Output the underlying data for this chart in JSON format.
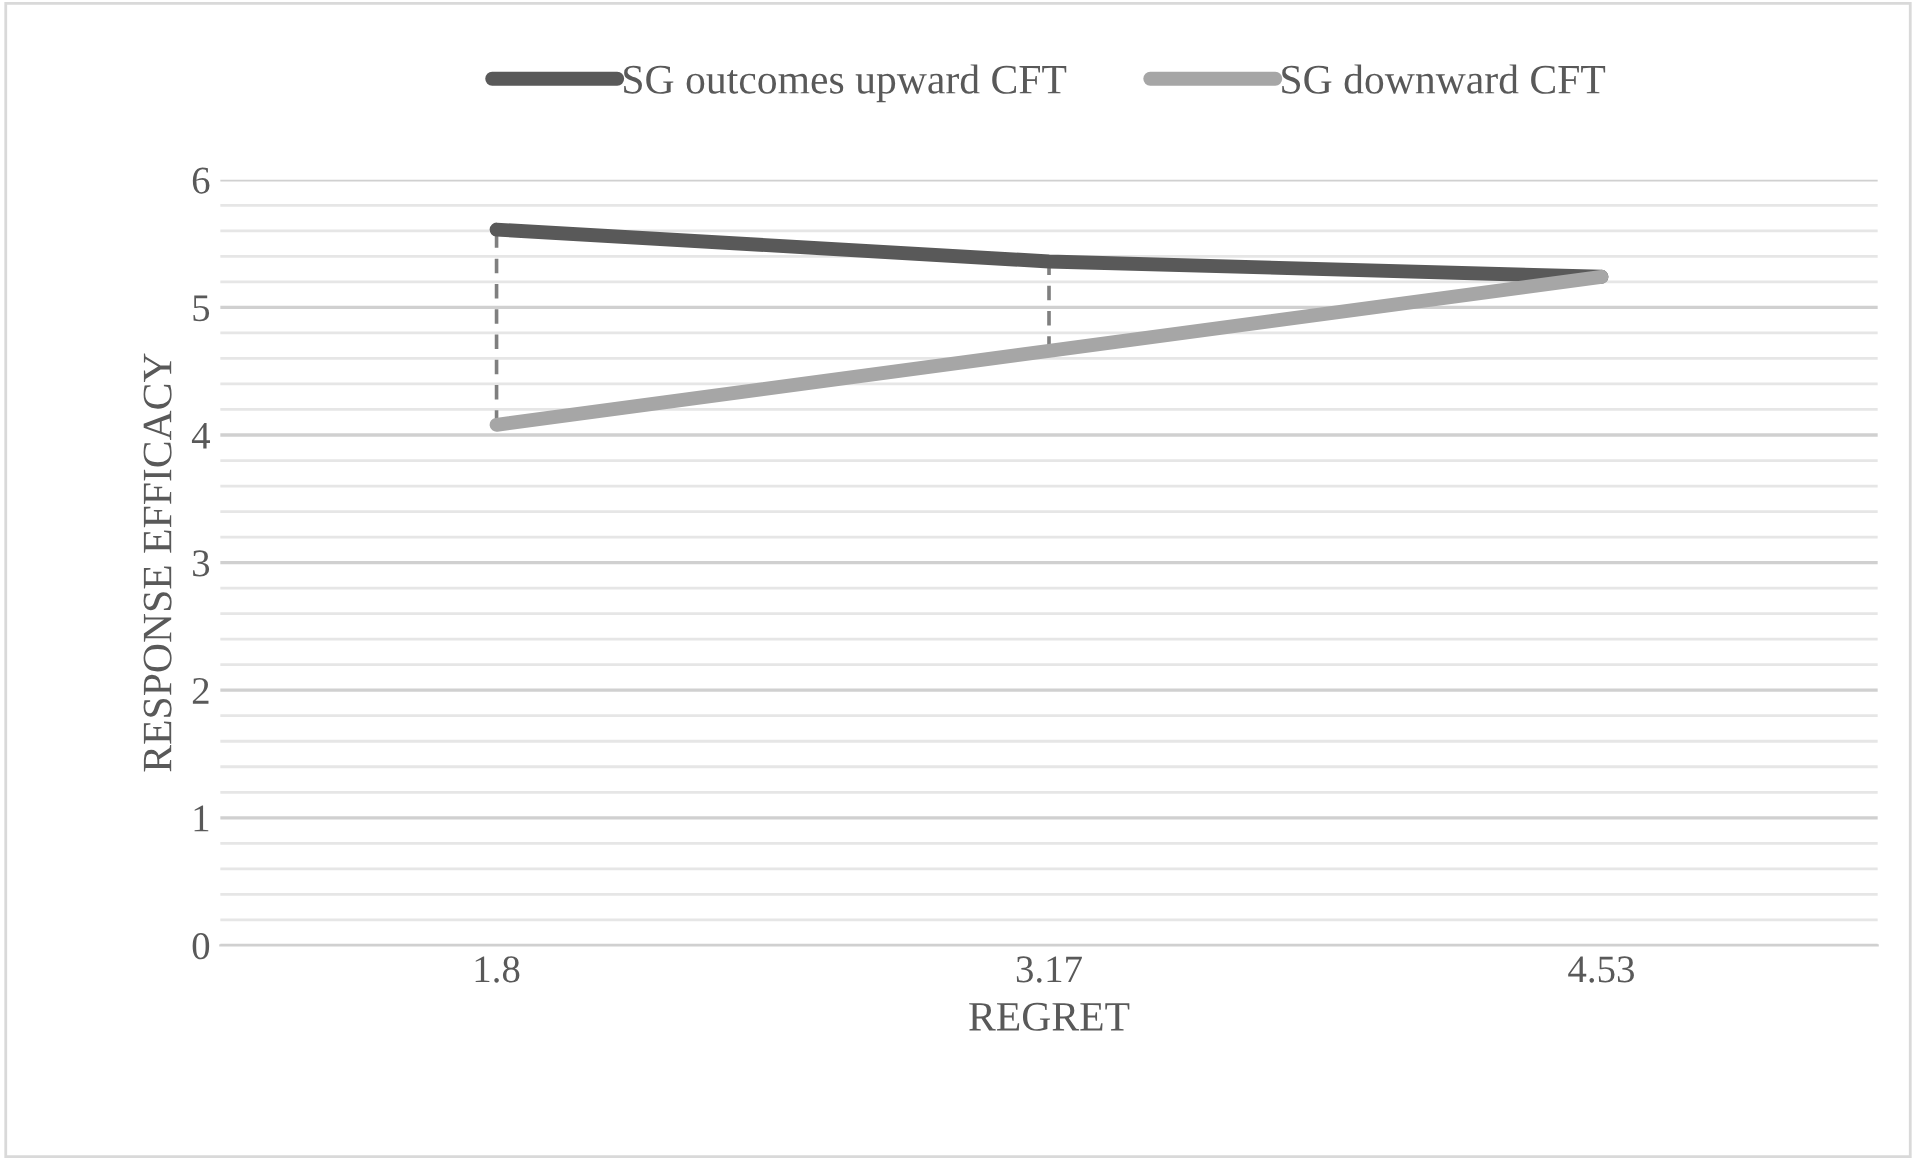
{
  "chart_data": {
    "type": "line",
    "xlabel": "REGRET",
    "ylabel": "RESPONSE EFFICACY",
    "categories": [
      "1.8",
      "3.17",
      "4.53"
    ],
    "series": [
      {
        "name": "SG outcomes upward CFT",
        "color": "#595959",
        "values": [
          5.61,
          5.36,
          5.24
        ],
        "errors": [
          [
            4.08,
            5.61
          ],
          [
            4.66,
            5.36
          ],
          null
        ]
      },
      {
        "name": "SG downward CFT",
        "color": "#a6a6a6",
        "values": [
          4.08,
          4.66,
          5.24
        ]
      }
    ],
    "ylim": [
      0,
      6
    ],
    "yticks": [
      0,
      1,
      2,
      3,
      4,
      5,
      6
    ],
    "grid": "y",
    "legend": "top",
    "marker": "none",
    "line_style": "solid"
  }
}
